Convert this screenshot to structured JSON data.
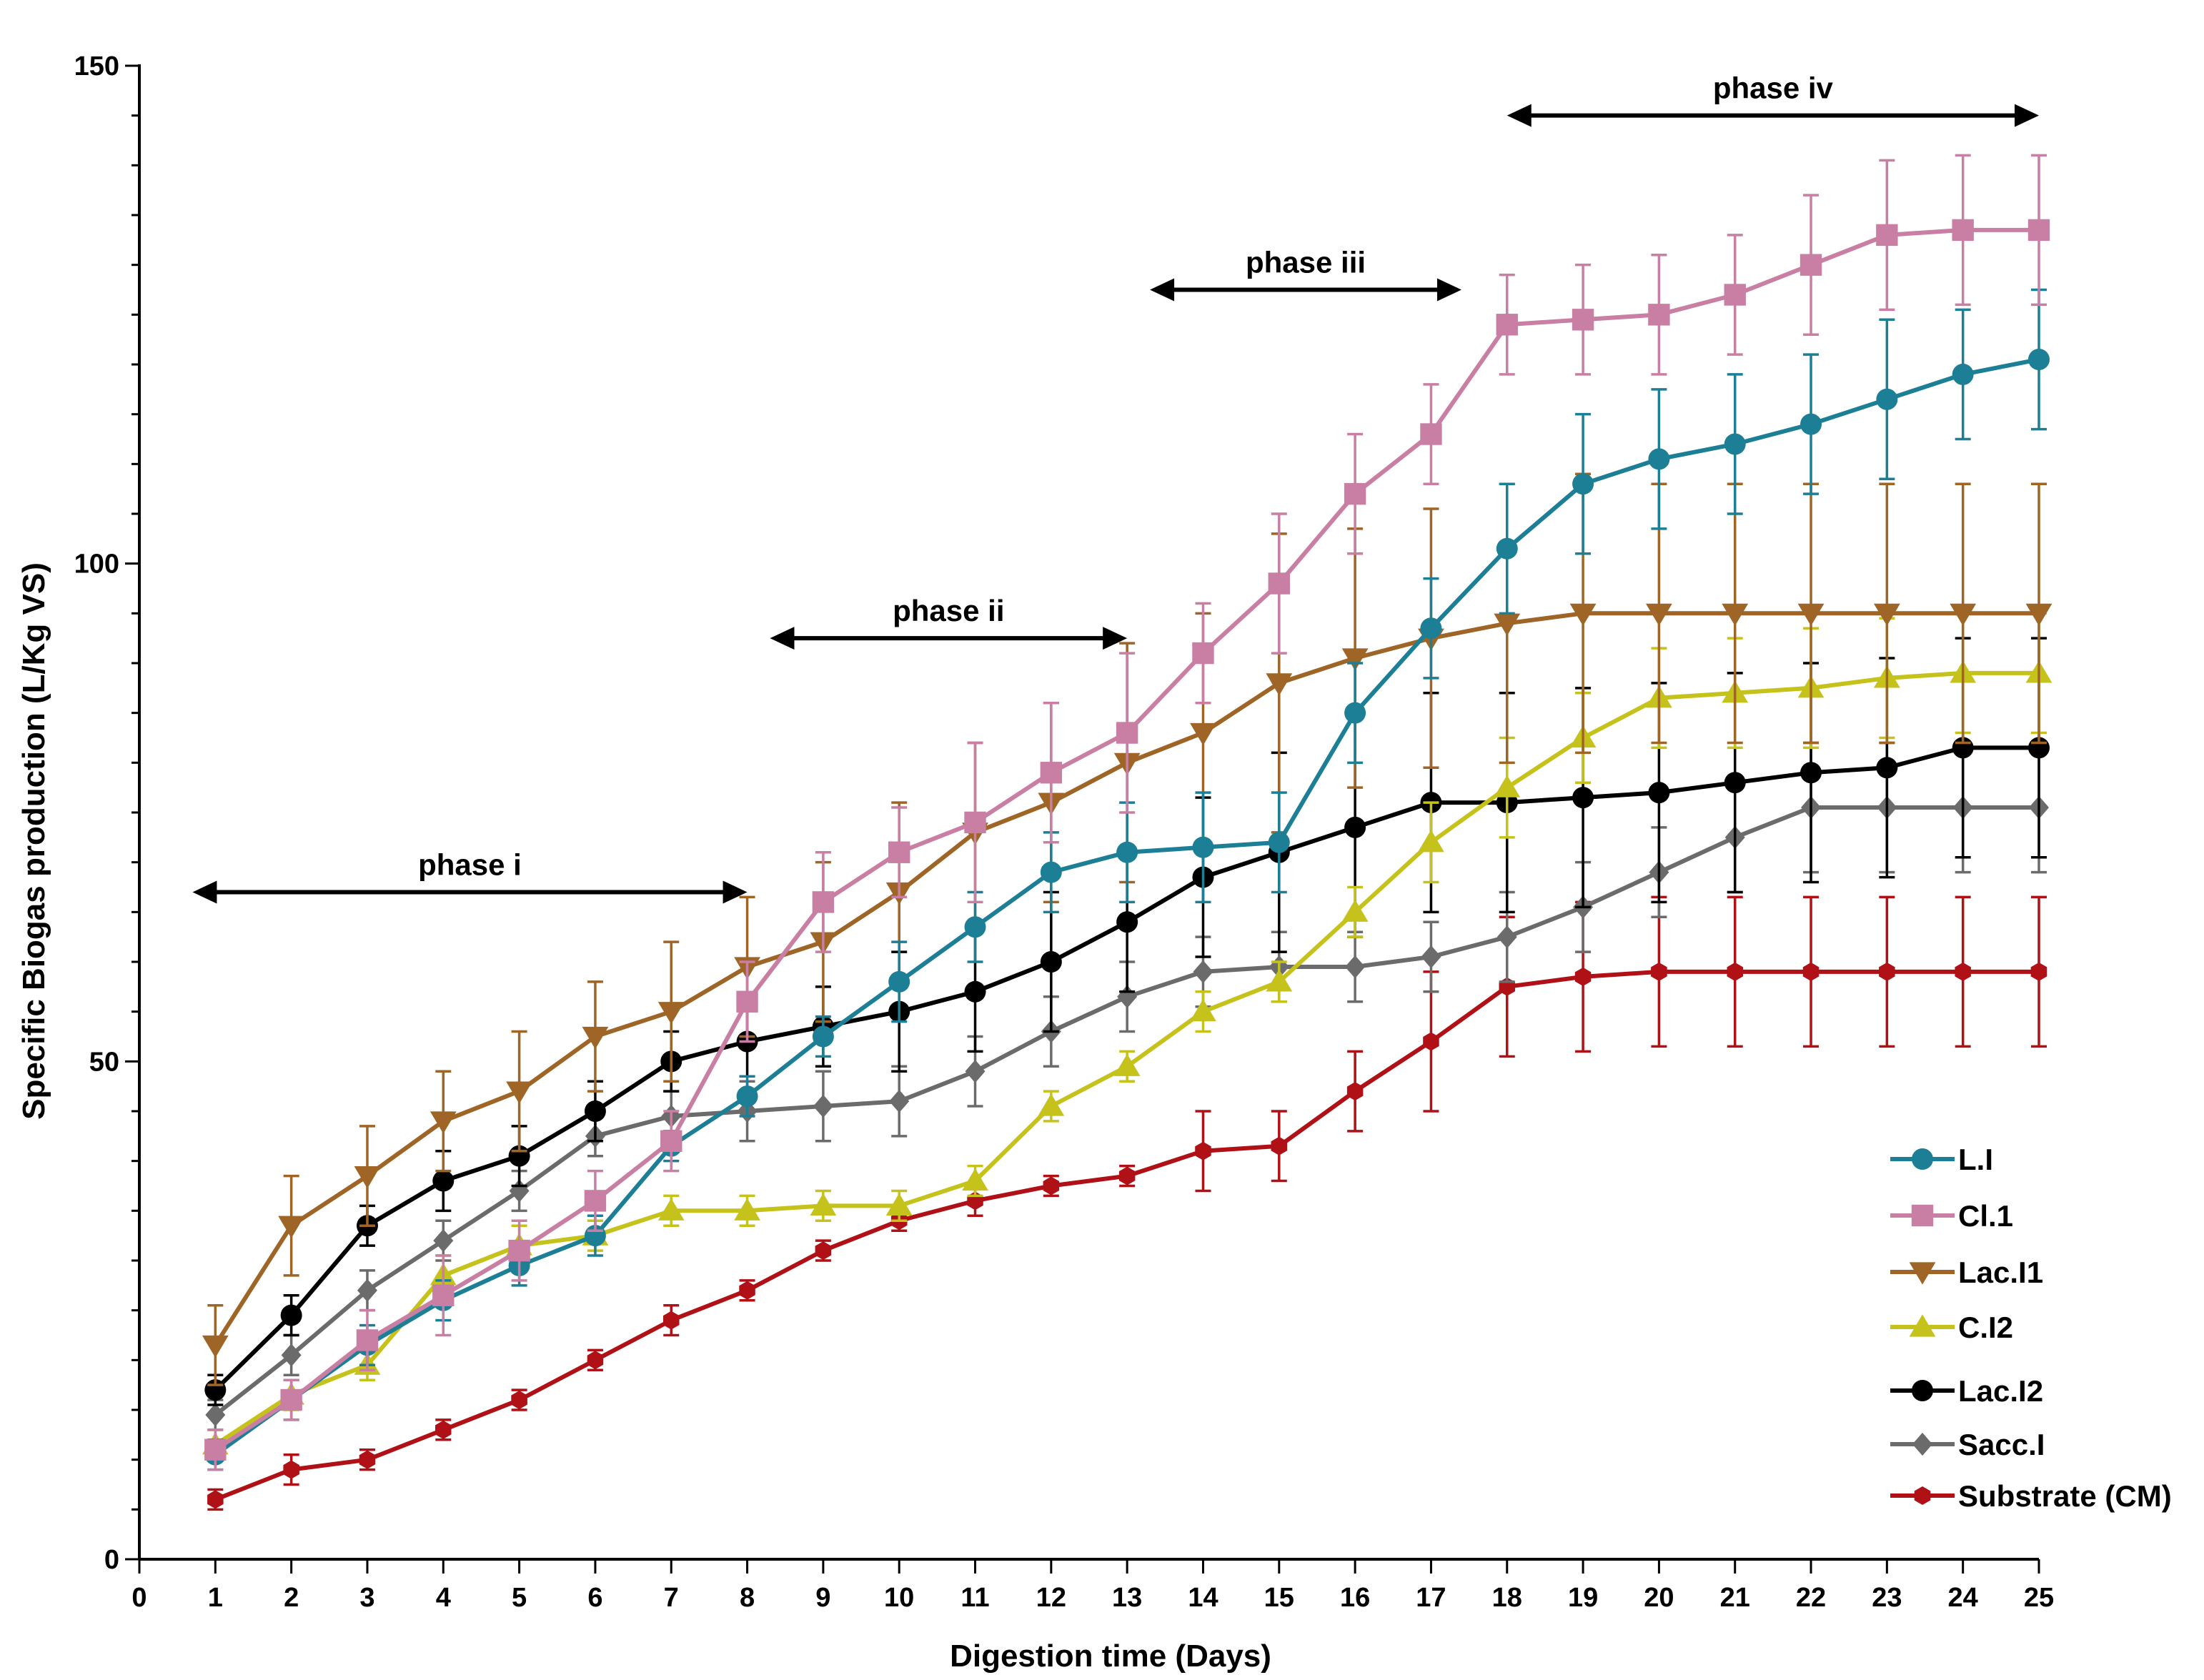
{
  "chart_data": {
    "type": "line",
    "title": "",
    "xlabel": "Digestion time (Days)",
    "ylabel": "Specific Biogas production (L/Kg VS)",
    "xlim": [
      0,
      25
    ],
    "ylim": [
      0,
      150
    ],
    "x_ticks": [
      "0",
      "1",
      "2",
      "3",
      "4",
      "5",
      "6",
      "7",
      "8",
      "9",
      "10",
      "11",
      "12",
      "13",
      "14",
      "15",
      "16",
      "17",
      "18",
      "19",
      "20",
      "21",
      "22",
      "23",
      "24",
      "25"
    ],
    "y_ticks": [
      "0",
      "50",
      "100",
      "150"
    ],
    "x": [
      1,
      2,
      3,
      4,
      5,
      6,
      7,
      8,
      9,
      10,
      11,
      12,
      13,
      14,
      15,
      16,
      17,
      18,
      19,
      20,
      21,
      22,
      23,
      24,
      25
    ],
    "series": [
      {
        "name": "Substrate (CM)",
        "color": "#b01116",
        "marker": "hexagon",
        "values": [
          6,
          9,
          10,
          13,
          16,
          20,
          24,
          27,
          31,
          34,
          36,
          37.5,
          38.5,
          41,
          41.5,
          47,
          52,
          57.5,
          58.5,
          59,
          59,
          59,
          59,
          59,
          59
        ],
        "errors": [
          1,
          1.5,
          1,
          1,
          1,
          1,
          1.5,
          1,
          1,
          1,
          1.5,
          1,
          1,
          4,
          3.5,
          4,
          7,
          7,
          7.5,
          7.5,
          7.5,
          7.5,
          7.5,
          7.5,
          7.5
        ]
      },
      {
        "name": "Sacc.I",
        "color": "#6b6b6b",
        "marker": "diamond",
        "values": [
          14.5,
          20.5,
          27,
          32,
          37,
          42.5,
          44.5,
          45,
          45.5,
          46,
          49,
          53,
          56.5,
          59,
          59.5,
          59.5,
          60.5,
          62.5,
          65.5,
          69,
          72.5,
          75.5,
          75.5,
          75.5,
          75.5
        ],
        "errors": [
          1.5,
          2,
          2,
          2,
          2,
          2,
          2.5,
          3,
          3.5,
          3.5,
          3.5,
          3.5,
          3.5,
          3.5,
          3.5,
          3.5,
          3.5,
          4.5,
          4.5,
          4.5,
          5.5,
          6.5,
          6.5,
          6.5,
          6.5
        ]
      },
      {
        "name": "Lac.I2",
        "color": "#000000",
        "marker": "circle",
        "values": [
          17,
          24.5,
          33.5,
          38,
          40.5,
          45,
          50,
          52,
          53.5,
          55,
          57,
          60,
          64,
          68.5,
          71,
          73.5,
          76,
          76,
          76.5,
          77,
          78,
          79,
          79.5,
          81.5,
          81.5
        ],
        "errors": [
          1.5,
          2,
          2,
          3,
          3,
          3,
          3,
          3.5,
          4,
          6,
          6,
          7,
          7,
          8,
          10,
          11,
          11,
          11,
          11,
          11,
          11,
          11,
          11,
          11,
          11
        ]
      },
      {
        "name": "C.I2",
        "color": "#c6c21c",
        "marker": "triangle-up",
        "values": [
          11.5,
          16.5,
          19.5,
          28.5,
          31.5,
          32.5,
          35,
          35,
          35.5,
          35.5,
          38,
          45.5,
          49.5,
          55,
          58,
          65,
          72,
          77.5,
          82.5,
          86.5,
          87,
          87.5,
          88.5,
          89,
          89
        ],
        "errors": [
          1.5,
          1.5,
          1.5,
          2,
          2,
          1.5,
          1.5,
          1.5,
          1.5,
          1.5,
          1.5,
          1.5,
          1.5,
          2,
          2,
          2.5,
          4,
          5,
          4.5,
          5,
          5.5,
          6,
          6,
          6,
          6
        ]
      },
      {
        "name": "Lac.I1",
        "color": "#9e6526",
        "marker": "triangle-down",
        "values": [
          21.5,
          33.5,
          38.5,
          44,
          47,
          52.5,
          55,
          59.5,
          62,
          67,
          73,
          76,
          80,
          83,
          88,
          90.5,
          92.5,
          94,
          95,
          95,
          95,
          95,
          95,
          95,
          95
        ],
        "errors": [
          4,
          5,
          5,
          5,
          6,
          5.5,
          7,
          7,
          8,
          9,
          9,
          10,
          12,
          12,
          15,
          13,
          13,
          14,
          14,
          13,
          13,
          13,
          13,
          13,
          13
        ]
      },
      {
        "name": "L.I",
        "color": "#1c7f96",
        "marker": "circle",
        "values": [
          10.5,
          16,
          21.5,
          26,
          29.5,
          32.5,
          41.5,
          46.5,
          52.5,
          58,
          63.5,
          69,
          71,
          71.5,
          72,
          85,
          93.5,
          101.5,
          108,
          110.5,
          112,
          114,
          116.5,
          119,
          120.5
        ],
        "errors": [
          1.5,
          2,
          2,
          2,
          2,
          2,
          1.5,
          2,
          2,
          4,
          3.5,
          4,
          5,
          5.5,
          5,
          5,
          5,
          6.5,
          7,
          7,
          7,
          7,
          8,
          6.5,
          7
        ]
      },
      {
        "name": "Cl.1",
        "color": "#c87fa3",
        "marker": "square",
        "values": [
          11,
          16,
          22,
          26.5,
          31,
          36,
          42,
          56,
          66,
          71,
          74,
          79,
          83,
          91,
          98,
          107,
          113,
          124,
          124.5,
          125,
          127,
          130,
          133,
          133.5,
          133.5
        ],
        "errors": [
          2,
          2,
          3,
          4,
          3,
          3,
          3,
          4,
          5,
          4.5,
          8,
          7,
          8,
          5,
          7,
          6,
          5,
          5,
          5.5,
          6,
          6,
          7,
          7.5,
          7.5,
          7.5
        ]
      }
    ],
    "legend": [
      "L.I",
      "Cl.1",
      "Lac.I1",
      "C.I2",
      "Lac.I2",
      "Sacc.I",
      "Substrate (CM)"
    ],
    "legend_position": "bottom-right",
    "annotations": [
      {
        "label": "phase i",
        "x_start": 0.7,
        "x_end": 8.0,
        "y": 67
      },
      {
        "label": "phase ii",
        "x_start": 8.3,
        "x_end": 13.0,
        "y": 92.5
      },
      {
        "label": "phase iii",
        "x_start": 13.3,
        "x_end": 17.4,
        "y": 127.5
      },
      {
        "label": "phase iv",
        "x_start": 18.0,
        "x_end": 25.0,
        "y": 145
      }
    ]
  }
}
